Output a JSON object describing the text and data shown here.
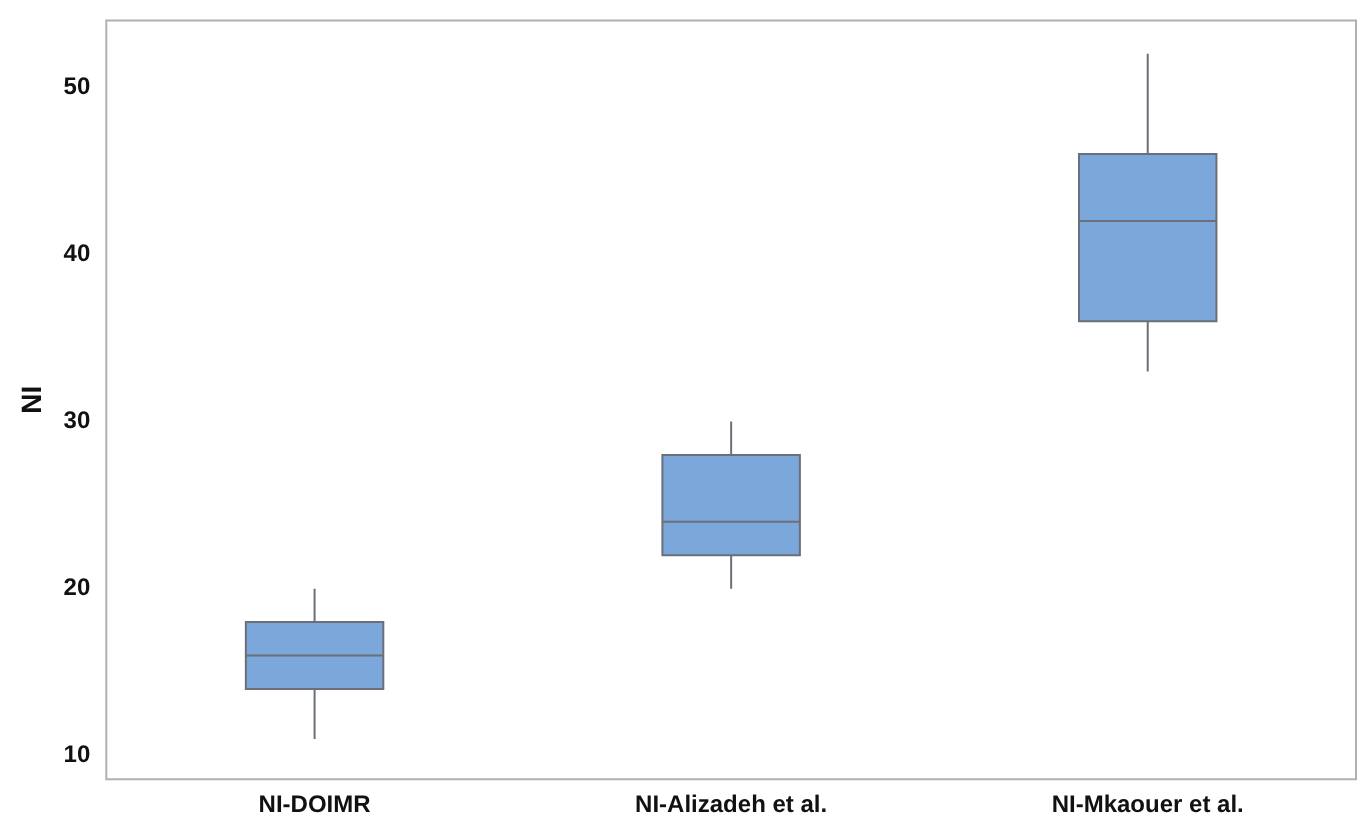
{
  "chart_data": {
    "type": "box",
    "ylabel": "NI",
    "categories": [
      "NI-DOIMR",
      "NI-Alizadeh et al.",
      "NI-Mkaouer et al."
    ],
    "boxes": [
      {
        "low": 11,
        "q1": 14,
        "median": 16,
        "q3": 18,
        "high": 20
      },
      {
        "low": 20,
        "q1": 22,
        "median": 24,
        "q3": 28,
        "high": 30
      },
      {
        "low": 33,
        "q1": 36,
        "median": 42,
        "q3": 46,
        "high": 52
      }
    ],
    "color": "#7ba7db",
    "ylim": [
      8.6,
      54
    ],
    "yticks": [
      10,
      20,
      30,
      40,
      50
    ],
    "grid": false,
    "legend": false
  }
}
